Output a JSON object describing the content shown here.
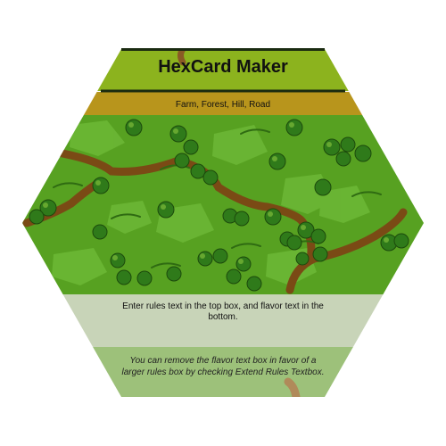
{
  "card": {
    "title": "HexCard Maker",
    "types": "Farm, Forest, Hill, Road",
    "rules_text": "Enter rules text in the top box, and flavor text in the bottom.",
    "flavor_text": "You can remove the flavor text box in favor of a larger rules box by checking Extend Rules Textbox."
  },
  "colors": {
    "title_band": "#8cb31e",
    "type_band": "#b8951c",
    "art_background": "#57a121",
    "road": "#7a4a15",
    "rules_box": "#c8d4b8",
    "flavor_box": "#9dc17a",
    "border_line": "#1a2a10"
  }
}
